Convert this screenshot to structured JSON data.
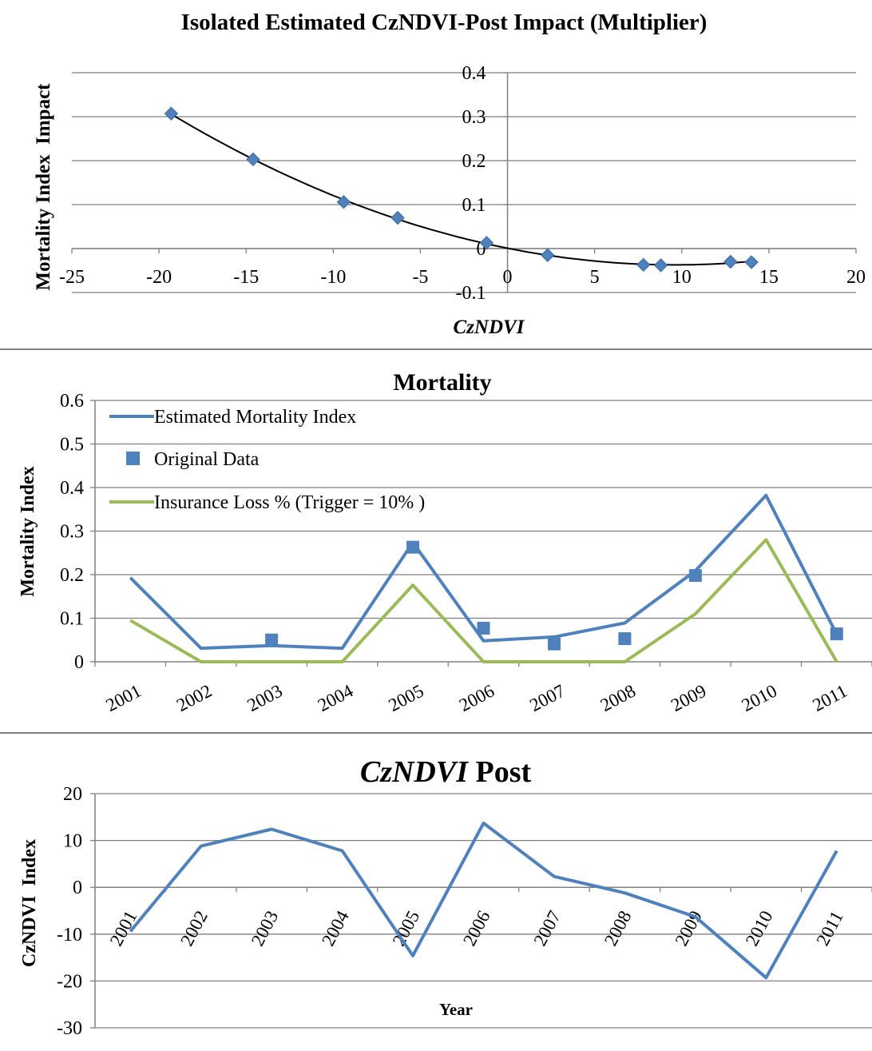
{
  "chart_data": [
    {
      "type": "scatter",
      "title": "Isolated Estimated CzNDVI-Post Impact (Multiplier)",
      "xlabel": "CzNDVI",
      "ylabel": "Mortality Index  Impact",
      "xlim": [
        -25,
        20
      ],
      "ylim": [
        -0.1,
        0.4
      ],
      "x_ticks": [
        "-25",
        "-20",
        "-15",
        "-10",
        "-5",
        "0",
        "5",
        "10",
        "15",
        "20"
      ],
      "y_ticks": [
        "-0.1",
        "0",
        "0.1",
        "0.2",
        "0.3",
        "0.4"
      ],
      "series": [
        {
          "x": [
            -19.3,
            -14.6,
            -9.4,
            -6.3,
            -1.2,
            2.3,
            7.8,
            8.8,
            12.8,
            14.0
          ],
          "y": [
            0.307,
            0.203,
            0.106,
            0.07,
            0.013,
            -0.015,
            -0.037,
            -0.038,
            -0.03,
            -0.031
          ]
        }
      ],
      "trendline": {
        "kind": "polynomial",
        "x_range": [
          -19.3,
          14.0
        ]
      },
      "grid": true,
      "colors": {
        "marker": "#4f81bd",
        "trend": "#000000"
      }
    },
    {
      "type": "line",
      "title": "Mortality",
      "ylabel": "Mortality Index",
      "ylim": [
        0,
        0.6
      ],
      "y_ticks": [
        "0",
        "0.1",
        "0.2",
        "0.3",
        "0.4",
        "0.5",
        "0.6"
      ],
      "categories": [
        "2001",
        "2002",
        "2003",
        "2004",
        "2005",
        "2006",
        "2007",
        "2008",
        "2009",
        "2010",
        "2011"
      ],
      "series": [
        {
          "name": "Estimated Mortality Index",
          "kind": "line",
          "color": "#4f81bd",
          "values": [
            0.193,
            0.031,
            0.037,
            0.031,
            0.274,
            0.048,
            0.057,
            0.089,
            0.209,
            0.382,
            0.063
          ]
        },
        {
          "name": "Original Data",
          "kind": "marker",
          "color": "#4f81bd",
          "values": [
            null,
            null,
            0.05,
            null,
            0.263,
            0.077,
            0.041,
            0.053,
            0.198,
            null,
            0.064
          ]
        },
        {
          "name": "Insurance Loss % (Trigger = 10% )",
          "kind": "line",
          "color": "#9bbb59",
          "values": [
            0.095,
            0.0,
            0.0,
            0.0,
            0.176,
            0.0,
            0.0,
            0.0,
            0.11,
            0.28,
            0.0
          ]
        }
      ],
      "legend": "top-left",
      "grid": true
    },
    {
      "type": "line",
      "title_italic": "CzNDVI",
      "title_rest": " Post",
      "xlabel": "Year",
      "ylabel": "CzNDVI  Index",
      "ylim": [
        -30,
        20
      ],
      "y_ticks": [
        "-30",
        "-20",
        "-10",
        "0",
        "10",
        "20"
      ],
      "categories": [
        "2001",
        "2002",
        "2003",
        "2004",
        "2005",
        "2006",
        "2007",
        "2008",
        "2009",
        "2010",
        "2011"
      ],
      "series": [
        {
          "color": "#4f81bd",
          "values": [
            -9.4,
            8.8,
            12.4,
            7.8,
            -14.6,
            13.7,
            2.3,
            -1.2,
            -6.3,
            -19.3,
            7.8
          ]
        }
      ],
      "grid": true
    }
  ]
}
